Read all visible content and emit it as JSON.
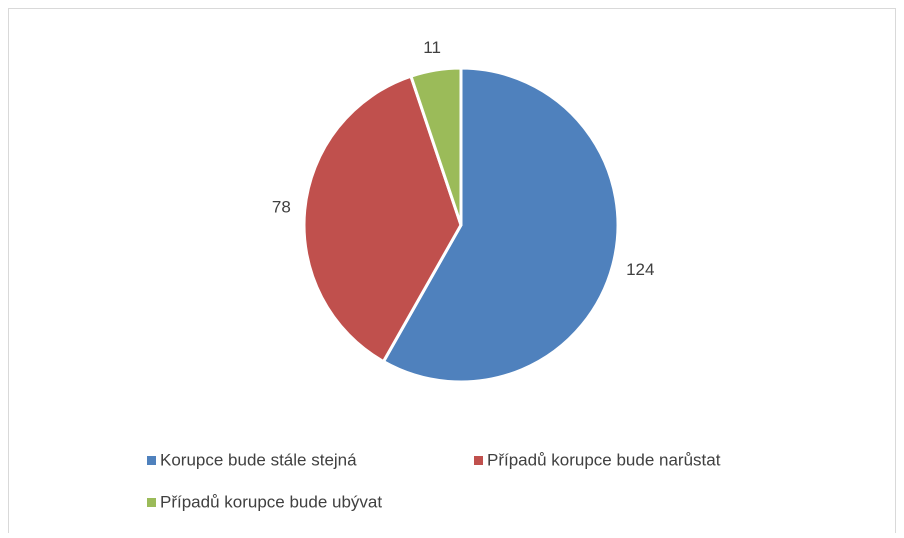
{
  "chart_data": {
    "type": "pie",
    "categories": [
      "Korupce bude stále stejná",
      "Případů korupce bude narůstat",
      "Případů korupce bude ubývat"
    ],
    "values": [
      124,
      78,
      11
    ],
    "colors": [
      "#4f81bd",
      "#c0504d",
      "#9bbb59"
    ],
    "legend": "bottom"
  }
}
